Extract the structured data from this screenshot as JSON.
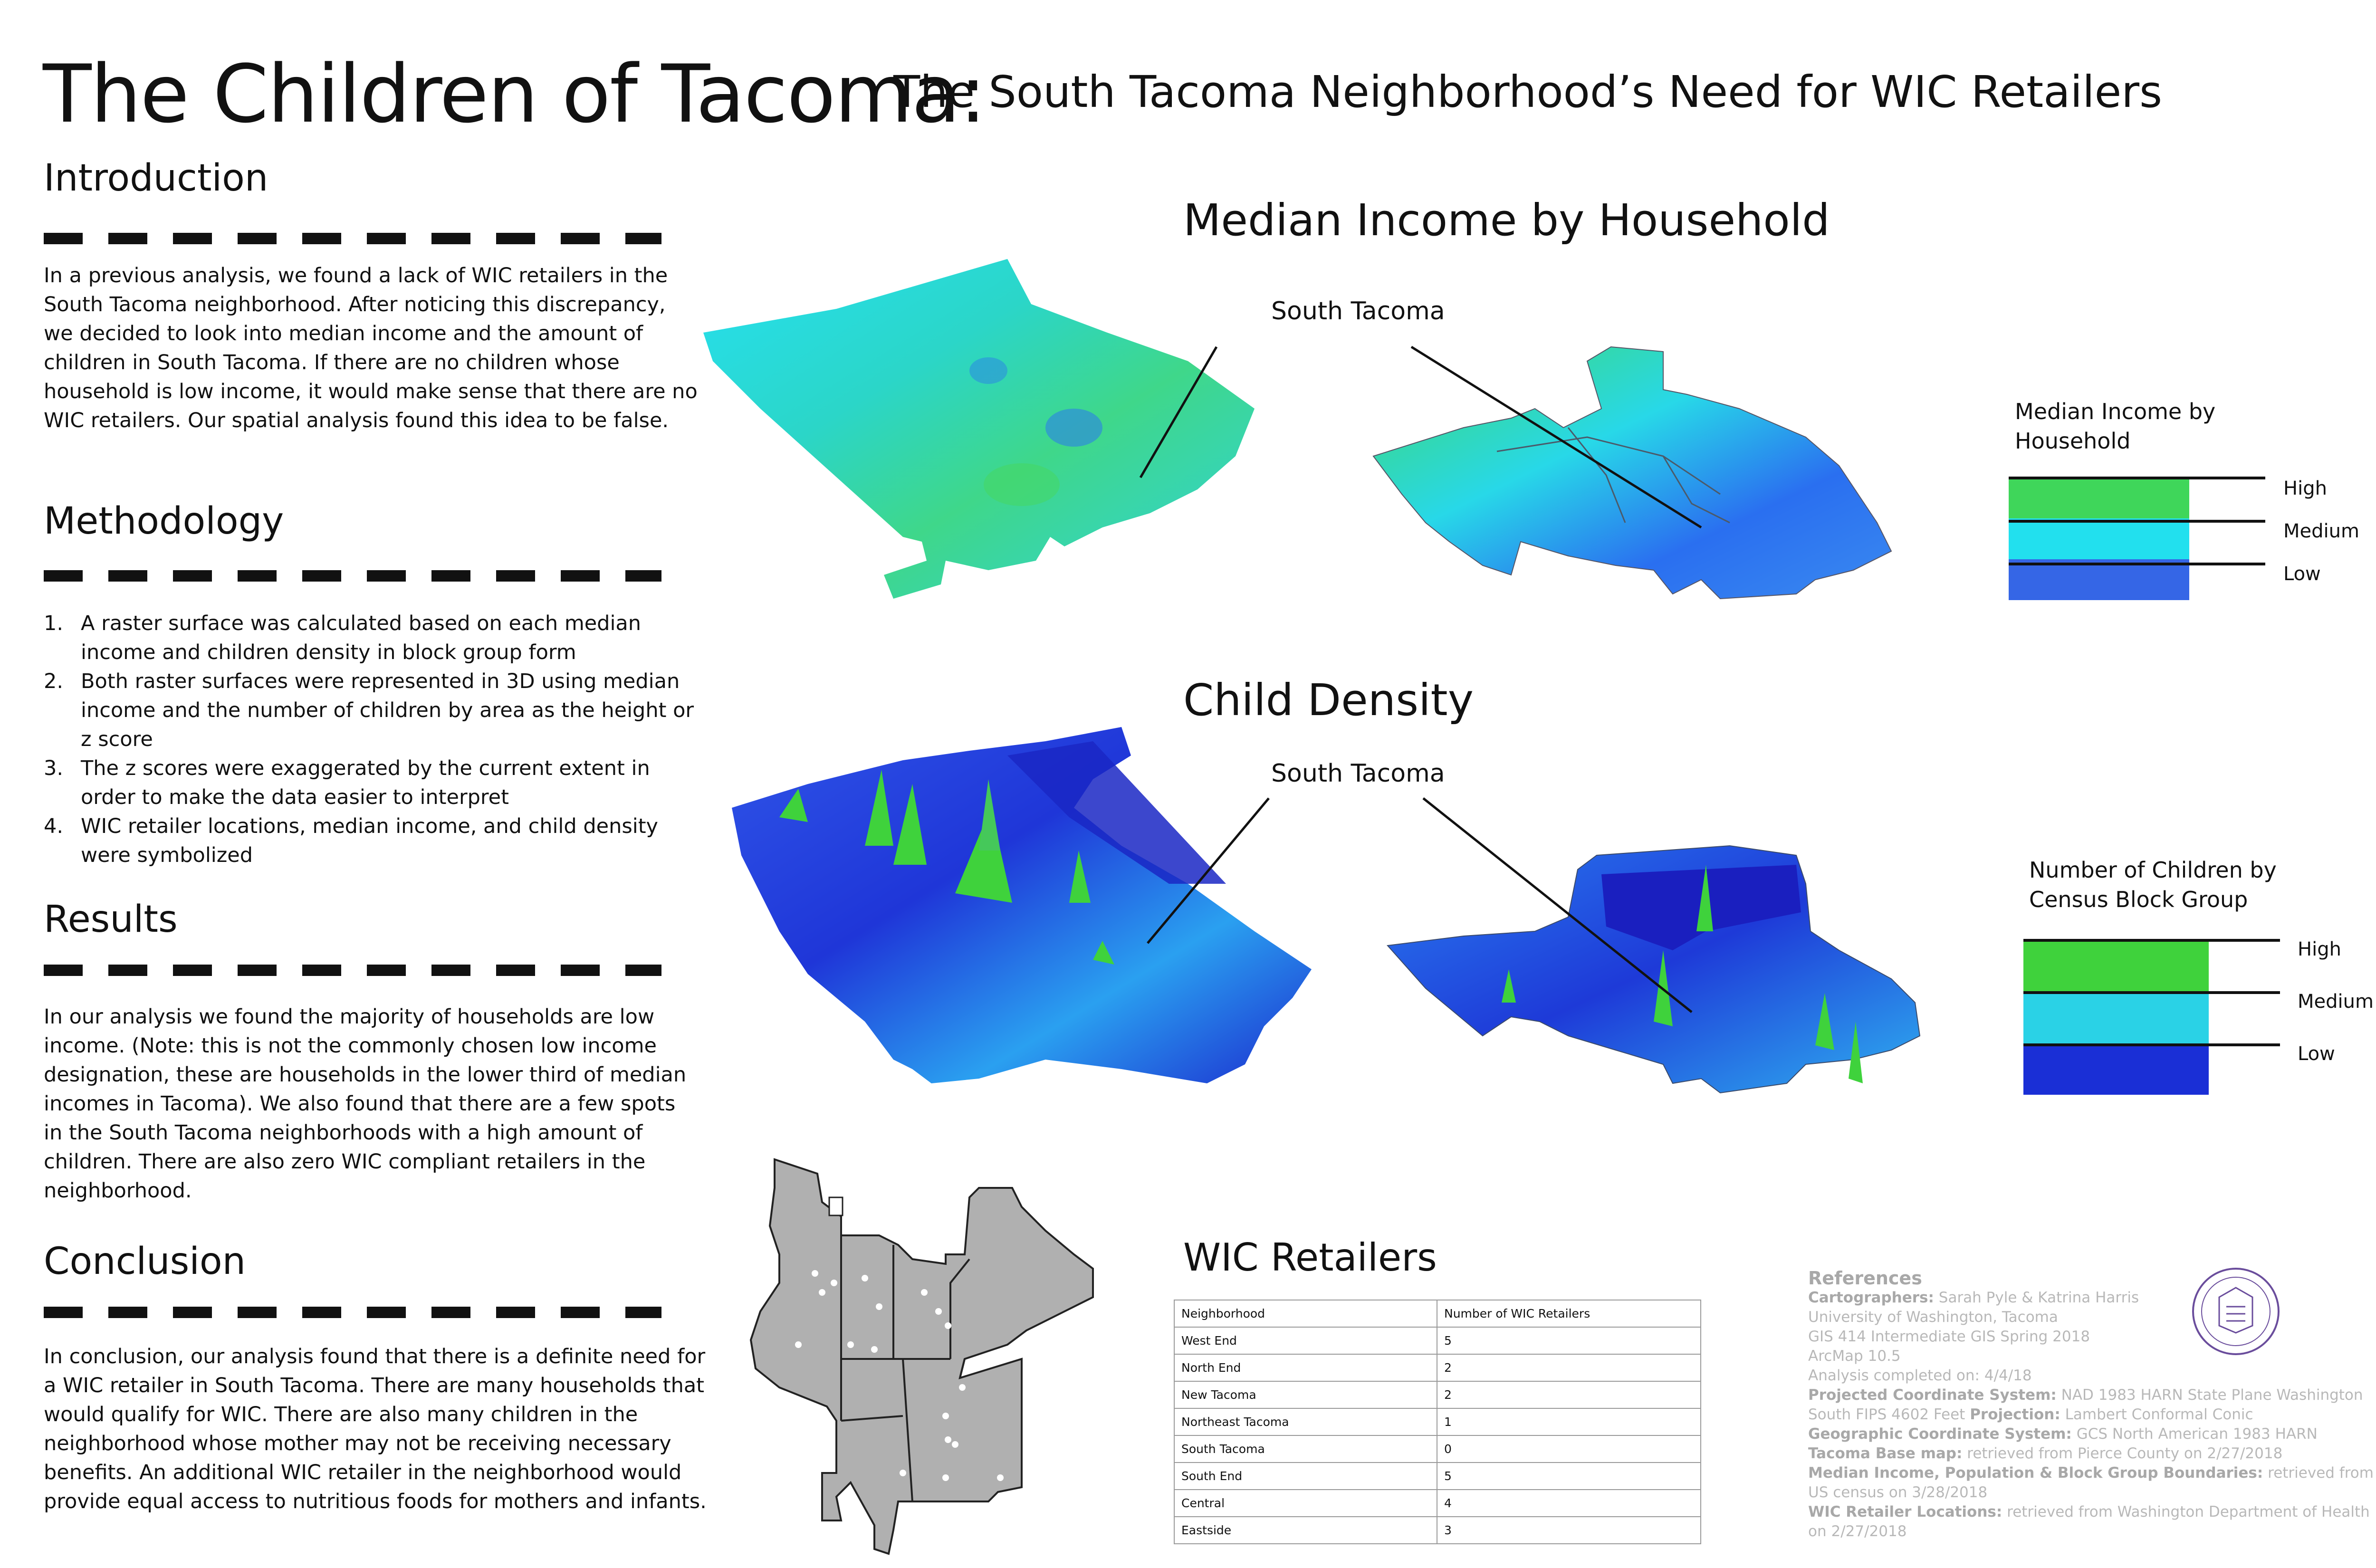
{
  "title": "The Children of Tacoma:",
  "subtitle": "The South Tacoma Neighborhood’s Need for WIC Retailers",
  "introduction": {
    "heading": "Introduction",
    "text": "In a previous analysis, we found a lack of WIC retailers in the South Tacoma neighborhood. After noticing this discrepancy, we decided to look into median income and the amount of children in South Tacoma. If there are no children whose household is low income, it would make sense that there are no WIC retailers. Our spatial analysis found this idea to be false."
  },
  "methodology": {
    "heading": "Methodology",
    "steps": [
      {
        "num": "1.",
        "text": "A raster surface was calculated based on each median income and children density in block group form"
      },
      {
        "num": "2.",
        "text": "Both raster surfaces were represented in 3D using median income and the number of children by area as the height or z score"
      },
      {
        "num": "3.",
        "text": "The z scores were exaggerated by the current extent in order to make the data easier to interpret"
      },
      {
        "num": "4.",
        "text": "WIC retailer locations, median income, and child density were symbolized"
      }
    ]
  },
  "results": {
    "heading": "Results",
    "text": "In our analysis we found the majority of households are low income. (Note: this is not the commonly chosen low income designation, these are households in the lower third of median incomes in Tacoma). We also found that there are a few spots in the South Tacoma neighborhoods with a high amount of children. There are also zero WIC compliant retailers in the neighborhood."
  },
  "conclusion": {
    "heading": "Conclusion",
    "text": "In conclusion, our analysis found that there is a definite need for a WIC retailer in South Tacoma. There are many households that would qualify for WIC. There are also many children in the neighborhood whose mother may  not be receiving necessary benefits. An additional WIC retailer in the neighborhood would provide equal access to nutritious foods for mothers and infants."
  },
  "income_map": {
    "title": "Median Income by Household",
    "callout": "South Tacoma",
    "legend_title": "Median Income by Household",
    "legend": [
      {
        "label": "High",
        "color": "#3fd65a"
      },
      {
        "label": "Medium",
        "color": "#22e0ee"
      },
      {
        "label": "Low",
        "color": "#3566e6"
      }
    ]
  },
  "density_map": {
    "title": "Child Density",
    "callout": "South Tacoma",
    "legend_title": "Number of Children by Census Block Group",
    "legend": [
      {
        "label": "High",
        "color": "#3fd23c"
      },
      {
        "label": "Medium",
        "color": "#2ad2e6"
      },
      {
        "label": "Low",
        "color": "#1a2fd6"
      }
    ]
  },
  "wic": {
    "title": "WIC Retailers",
    "columns": [
      "Neighborhood",
      "Number of WIC Retailers"
    ],
    "rows": [
      [
        "West End",
        "5"
      ],
      [
        "North End",
        "2"
      ],
      [
        "New Tacoma",
        "2"
      ],
      [
        "Northeast Tacoma",
        "1"
      ],
      [
        "South Tacoma",
        "0"
      ],
      [
        "South End",
        "5"
      ],
      [
        "Central",
        "4"
      ],
      [
        "Eastside",
        "3"
      ]
    ]
  },
  "references": {
    "heading": "References",
    "cartographers_label": "Cartographers:",
    "cartographers": "Sarah Pyle & Katrina Harris",
    "line2": "University of Washington, Tacoma",
    "line3": "GIS 414 Intermediate GIS Spring 2018",
    "line4": "ArcMap 10.5",
    "line5": "Analysis completed on: 4/4/18",
    "pcs_label": "Projected Coordinate System:",
    "pcs": "NAD 1983 HARN State Plane Washington South FIPS 4602 Feet",
    "proj_label": "Projection:",
    "proj": "Lambert Conformal Conic",
    "gcs_label": "Geographic Coordinate System:",
    "gcs": "GCS North American 1983 HARN",
    "base_label": "Tacoma Base map:",
    "base": "retrieved from Pierce County on 2/27/2018",
    "census_label": "Median Income, Population & Block Group Boundaries:",
    "census": "retrieved from US census on 3/28/2018",
    "wicloc_label": "WIC Retailer Locations:",
    "wicloc": "retrieved from Washington Department of Health on 2/27/2018"
  },
  "seal": {
    "text": "UNIVERSITY OF WASHINGTON 1861"
  },
  "colors": {
    "green": "#3fd65a",
    "cyan": "#22e0ee",
    "blue": "#1a2fd6",
    "gray_map": "#b0b0b0"
  }
}
